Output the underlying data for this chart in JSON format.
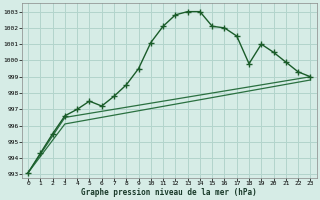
{
  "xlabel": "Graphe pression niveau de la mer (hPa)",
  "background_color": "#d6ece6",
  "grid_color": "#b2d4cc",
  "line_color_main": "#1a5c2a",
  "line_color_secondary1": "#2a7040",
  "line_color_secondary2": "#2a7040",
  "xlim": [
    -0.5,
    23.5
  ],
  "ylim": [
    992.8,
    1003.5
  ],
  "yticks": [
    993,
    994,
    995,
    996,
    997,
    998,
    999,
    1000,
    1001,
    1002,
    1003
  ],
  "xticks": [
    0,
    1,
    2,
    3,
    4,
    5,
    6,
    7,
    8,
    9,
    10,
    11,
    12,
    13,
    14,
    15,
    16,
    17,
    18,
    19,
    20,
    21,
    22,
    23
  ],
  "series1_x": [
    0,
    1,
    2,
    3,
    4,
    5,
    6,
    7,
    8,
    9,
    10,
    11,
    12,
    13,
    14,
    15,
    16,
    17,
    18,
    19,
    20,
    21,
    22,
    23
  ],
  "series1_y": [
    993.1,
    994.3,
    995.5,
    996.6,
    997.0,
    997.5,
    997.2,
    997.8,
    998.5,
    999.5,
    1001.1,
    1002.1,
    1002.8,
    1003.0,
    1003.0,
    1002.1,
    1002.0,
    1001.5,
    999.8,
    1001.0,
    1000.5,
    999.9,
    999.3,
    999.0
  ],
  "series2_x": [
    0,
    3,
    23
  ],
  "series2_y": [
    993.1,
    996.5,
    999.0
  ],
  "series3_x": [
    0,
    3,
    23
  ],
  "series3_y": [
    993.1,
    996.1,
    998.8
  ]
}
